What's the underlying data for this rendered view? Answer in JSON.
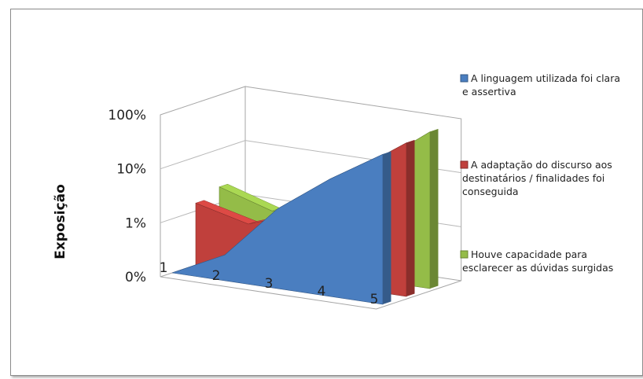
{
  "chart_data": {
    "type": "area",
    "subtype": "3d-area",
    "scale": "log",
    "ylabel": "Exposição",
    "y_ticks": [
      "0%",
      "1%",
      "10%",
      "100%"
    ],
    "categories": [
      "1",
      "2",
      "3",
      "4",
      "5"
    ],
    "series": [
      {
        "name": "A linguagem utilizada foi clara e assertiva",
        "color": "#4a7ec0",
        "values": [
          0.001,
          0.003,
          0.03,
          0.15,
          0.6
        ]
      },
      {
        "name": "A adaptação do discurso aos destinatários / finalidades foi conseguida",
        "color": "#c0403c",
        "values": [
          0.014,
          0.008,
          0.018,
          0.15,
          0.7
        ]
      },
      {
        "name": "Houve capacidade para esclarecer as dúvidas surgidas",
        "color": "#94bc48",
        "values": [
          0.02,
          0.01,
          0.015,
          0.15,
          0.8
        ]
      }
    ],
    "grid": true,
    "legend_position": "right"
  }
}
